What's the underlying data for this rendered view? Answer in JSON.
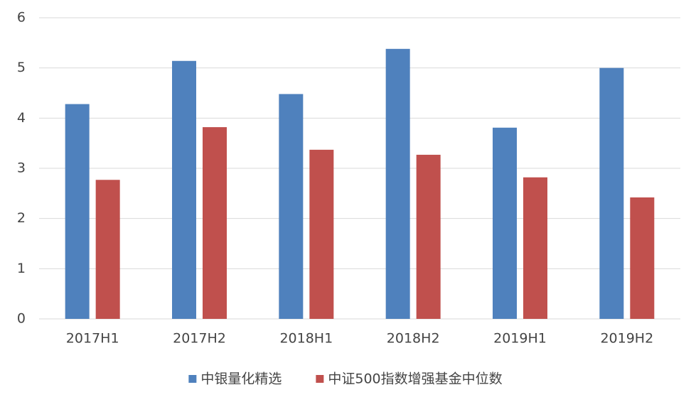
{
  "chart_data": {
    "type": "bar",
    "categories": [
      "2017H1",
      "2017H2",
      "2018H1",
      "2018H2",
      "2019H1",
      "2019H2"
    ],
    "series": [
      {
        "name": "中银量化精选",
        "color": "#4f81bd",
        "values": [
          4.28,
          5.14,
          4.48,
          5.38,
          3.81,
          5.0
        ]
      },
      {
        "name": "中证500指数增强基金中位数",
        "color": "#c0504d",
        "values": [
          2.77,
          3.82,
          3.37,
          3.27,
          2.82,
          2.42
        ]
      }
    ],
    "ylim": [
      0,
      6
    ],
    "yticks": [
      0,
      1,
      2,
      3,
      4,
      5,
      6
    ],
    "grid": true,
    "legend": "bottom"
  }
}
